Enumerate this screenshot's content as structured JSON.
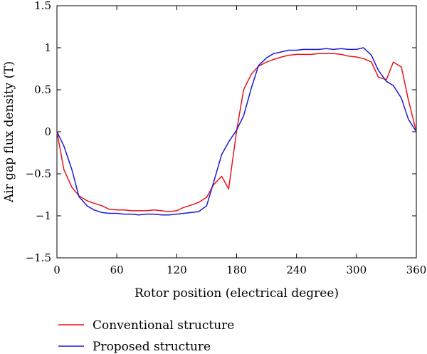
{
  "chart_data": {
    "type": "line",
    "xlabel": "Rotor position (electrical degree)",
    "ylabel": "Air gap flux density (T)",
    "xlim": [
      0,
      360
    ],
    "ylim": [
      -1.5,
      1.5
    ],
    "xticks": [
      "0",
      "60",
      "120",
      "180",
      "240",
      "300",
      "360"
    ],
    "yticks": [
      "1.5",
      "1",
      "0.5",
      "0",
      "−0.5",
      "−1",
      "−1.5"
    ],
    "xtick_values": [
      0,
      60,
      120,
      180,
      240,
      300,
      360
    ],
    "ytick_values": [
      1.5,
      1,
      0.5,
      0,
      -0.5,
      -1,
      -1.5
    ],
    "grid": false,
    "legend_position": "bottom-left, below plot",
    "series": [
      {
        "name": "Conventional structure",
        "color": "#e8141b",
        "x": [
          0,
          7,
          15,
          22,
          30,
          37,
          45,
          52,
          60,
          67,
          75,
          82,
          90,
          97,
          105,
          112,
          120,
          127,
          135,
          142,
          150,
          157,
          165,
          172,
          180,
          187,
          195,
          202,
          210,
          217,
          225,
          232,
          240,
          247,
          255,
          262,
          270,
          277,
          285,
          292,
          300,
          307,
          315,
          322,
          330,
          337,
          345,
          352,
          360
        ],
        "y": [
          0,
          -0.45,
          -0.66,
          -0.76,
          -0.82,
          -0.85,
          -0.88,
          -0.92,
          -0.93,
          -0.93,
          -0.94,
          -0.94,
          -0.94,
          -0.93,
          -0.94,
          -0.95,
          -0.94,
          -0.9,
          -0.87,
          -0.84,
          -0.78,
          -0.63,
          -0.53,
          -0.68,
          0.01,
          0.5,
          0.69,
          0.78,
          0.83,
          0.86,
          0.89,
          0.91,
          0.92,
          0.92,
          0.92,
          0.93,
          0.93,
          0.93,
          0.92,
          0.9,
          0.89,
          0.87,
          0.83,
          0.65,
          0.62,
          0.83,
          0.77,
          0.38,
          0.0
        ]
      },
      {
        "name": "Proposed structure",
        "color": "#1a1ad8",
        "x": [
          0,
          7,
          15,
          22,
          30,
          37,
          45,
          52,
          60,
          67,
          75,
          82,
          90,
          97,
          105,
          112,
          120,
          127,
          135,
          142,
          150,
          157,
          165,
          172,
          180,
          187,
          195,
          202,
          210,
          217,
          225,
          232,
          240,
          247,
          255,
          262,
          270,
          277,
          285,
          292,
          300,
          307,
          315,
          322,
          330,
          337,
          345,
          352,
          360
        ],
        "y": [
          0,
          -0.17,
          -0.45,
          -0.77,
          -0.88,
          -0.93,
          -0.96,
          -0.97,
          -0.97,
          -0.98,
          -0.98,
          -0.99,
          -0.98,
          -0.98,
          -0.99,
          -0.99,
          -0.98,
          -0.97,
          -0.96,
          -0.95,
          -0.88,
          -0.6,
          -0.27,
          -0.12,
          0.02,
          0.19,
          0.53,
          0.79,
          0.88,
          0.93,
          0.95,
          0.97,
          0.97,
          0.98,
          0.98,
          0.98,
          0.99,
          0.98,
          0.99,
          0.98,
          0.98,
          1.0,
          0.91,
          0.73,
          0.6,
          0.55,
          0.4,
          0.15,
          0.0
        ]
      }
    ]
  }
}
